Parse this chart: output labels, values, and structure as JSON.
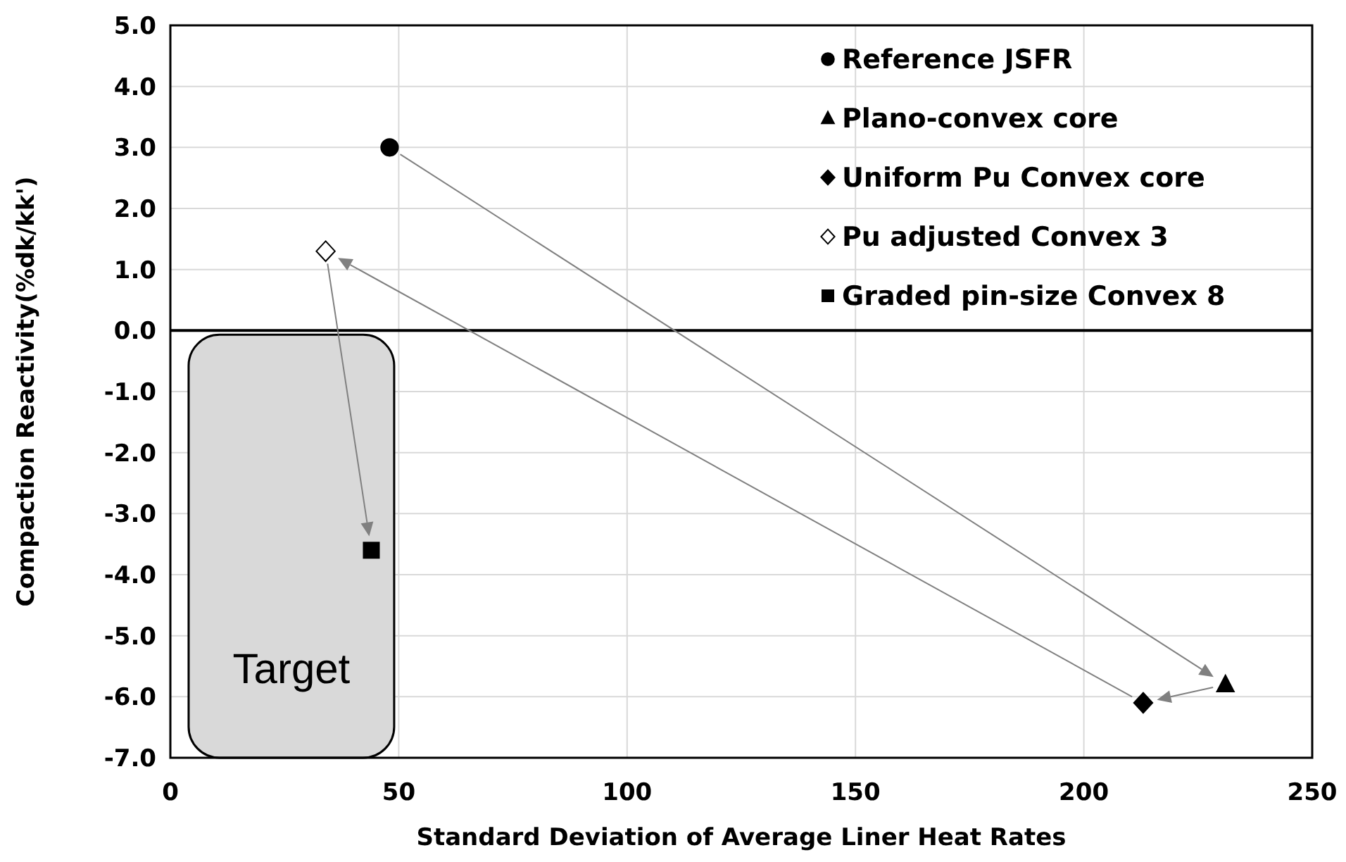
{
  "chart_data": {
    "type": "scatter",
    "xlabel": "Standard Deviation of Average Liner Heat Rates",
    "ylabel": "Compaction Reactivity(%dk/kk')",
    "xlim": [
      0,
      250
    ],
    "xticks": [
      0,
      50,
      100,
      150,
      200,
      250
    ],
    "ylim": [
      -7,
      5
    ],
    "yticks": [
      {
        "value": -7,
        "label": "-7.0"
      },
      {
        "value": -6,
        "label": "-6.0"
      },
      {
        "value": -5,
        "label": "-5.0"
      },
      {
        "value": -4,
        "label": "-4.0"
      },
      {
        "value": -3,
        "label": "-3.0"
      },
      {
        "value": -2,
        "label": "-2.0"
      },
      {
        "value": -1,
        "label": "-1.0"
      },
      {
        "value": 0,
        "label": "0.0"
      },
      {
        "value": 1,
        "label": "1.0"
      },
      {
        "value": 2,
        "label": "2.0"
      },
      {
        "value": 3,
        "label": "3.0"
      },
      {
        "value": 4,
        "label": "4.0"
      },
      {
        "value": 5,
        "label": "5.0"
      }
    ],
    "grid": true,
    "legend": "top right",
    "series": [
      {
        "name": "Reference JSFR",
        "color": "#000000",
        "marker": "circle",
        "x": [
          48
        ],
        "values": [
          3.0
        ]
      },
      {
        "name": "Plano-convex core",
        "color": "#000000",
        "marker": "triangle",
        "x": [
          231
        ],
        "values": [
          -5.8
        ]
      },
      {
        "name": "Uniform Pu Convex core",
        "color": "#000000",
        "marker": "diamond",
        "x": [
          213
        ],
        "values": [
          -6.1
        ]
      },
      {
        "name": "Pu adjusted Convex 3",
        "color": "#ffffff",
        "marker": "diamond",
        "x": [
          34
        ],
        "values": [
          1.3
        ]
      },
      {
        "name": "Graded pin-size Convex 8",
        "color": "#000000",
        "marker": "square",
        "x": [
          44
        ],
        "values": [
          -3.6
        ]
      }
    ],
    "ref_lines": [
      {
        "axis": "y",
        "value": 0,
        "color": "#000000"
      }
    ],
    "bands": [
      {
        "axis": "x",
        "from": 4,
        "to": 49,
        "label": "Target",
        "color": "#d9d9d9"
      }
    ]
  }
}
